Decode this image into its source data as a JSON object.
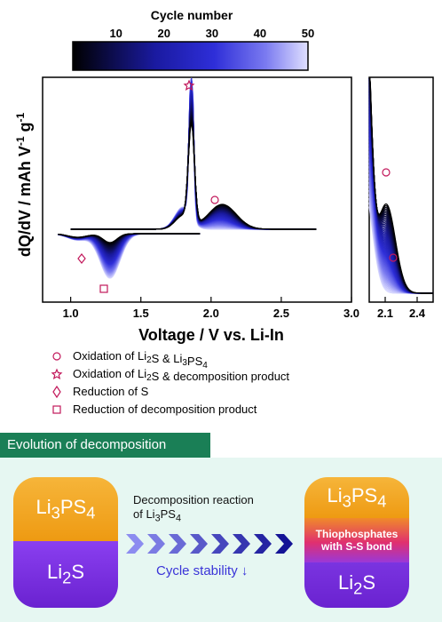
{
  "colorbar": {
    "title": "Cycle number",
    "ticks": [
      "10",
      "20",
      "30",
      "40",
      "50"
    ],
    "tick_values": [
      10,
      20,
      30,
      40,
      50
    ],
    "range": [
      1,
      50
    ],
    "colors": [
      "#000000",
      "#1a1aa0",
      "#2e2ed8",
      "#7a7af0",
      "#d8d8ff"
    ]
  },
  "chart_data": {
    "type": "line",
    "xlabel": "Voltage / V vs. Li-In",
    "ylabel_parts": [
      "dQ/dV / mAh V",
      "-1",
      " g",
      "-1"
    ],
    "x_main_ticks": [
      "1.0",
      "1.5",
      "2.0",
      "2.5",
      "3.0"
    ],
    "x_inset_ticks": [
      "2.1",
      "2.4"
    ],
    "xlim_main": [
      0.8,
      3.0
    ],
    "xlim_inset": [
      1.95,
      2.55
    ],
    "series_count": 50,
    "description_values": {
      "charge_peak_voltage": 1.86,
      "shoulder_peak_voltage": 2.05,
      "discharge_valley_voltage": 1.28
    },
    "markers": [
      {
        "symbol": "star",
        "x": 1.86
      },
      {
        "symbol": "circle",
        "x": 2.03
      },
      {
        "symbol": "diamond",
        "x": 1.08
      },
      {
        "symbol": "square",
        "x": 1.25
      }
    ]
  },
  "legend": [
    {
      "symbol": "circle",
      "parts": [
        [
          "Oxidation of Li",
          ""
        ],
        [
          "2",
          "sub"
        ],
        [
          "S & Li",
          ""
        ],
        [
          "3",
          "sub"
        ],
        [
          "PS",
          ""
        ],
        [
          "4",
          "sub"
        ]
      ]
    },
    {
      "symbol": "star",
      "parts": [
        [
          "Oxidation of Li",
          ""
        ],
        [
          "2",
          "sub"
        ],
        [
          "S & decomposition product",
          ""
        ]
      ]
    },
    {
      "symbol": "diamond",
      "parts": [
        [
          "Reduction of S",
          ""
        ]
      ]
    },
    {
      "symbol": "square",
      "parts": [
        [
          "Reduction of decomposition product",
          ""
        ]
      ]
    }
  ],
  "panel": {
    "title": "Evolution of decomposition",
    "left_top": [
      "Li",
      "3",
      "PS",
      "4"
    ],
    "left_bottom": [
      "Li",
      "2",
      "S"
    ],
    "arrow_line1": "Decomposition reaction",
    "arrow_line2": [
      "of Li",
      "3",
      "PS",
      "4"
    ],
    "stability": "Cycle stability ↓",
    "right_top": [
      "Li",
      "3",
      "PS",
      "4"
    ],
    "right_middle": [
      "Thiophosphates",
      "with S-S bond"
    ],
    "right_bottom": [
      "Li",
      "2",
      "S"
    ],
    "colors": {
      "orange": "#f2a623",
      "purple": "#7a2fe0",
      "pink": "#e0306f",
      "arrow": "#2a2ad8",
      "banner": "#1a7f56"
    }
  }
}
